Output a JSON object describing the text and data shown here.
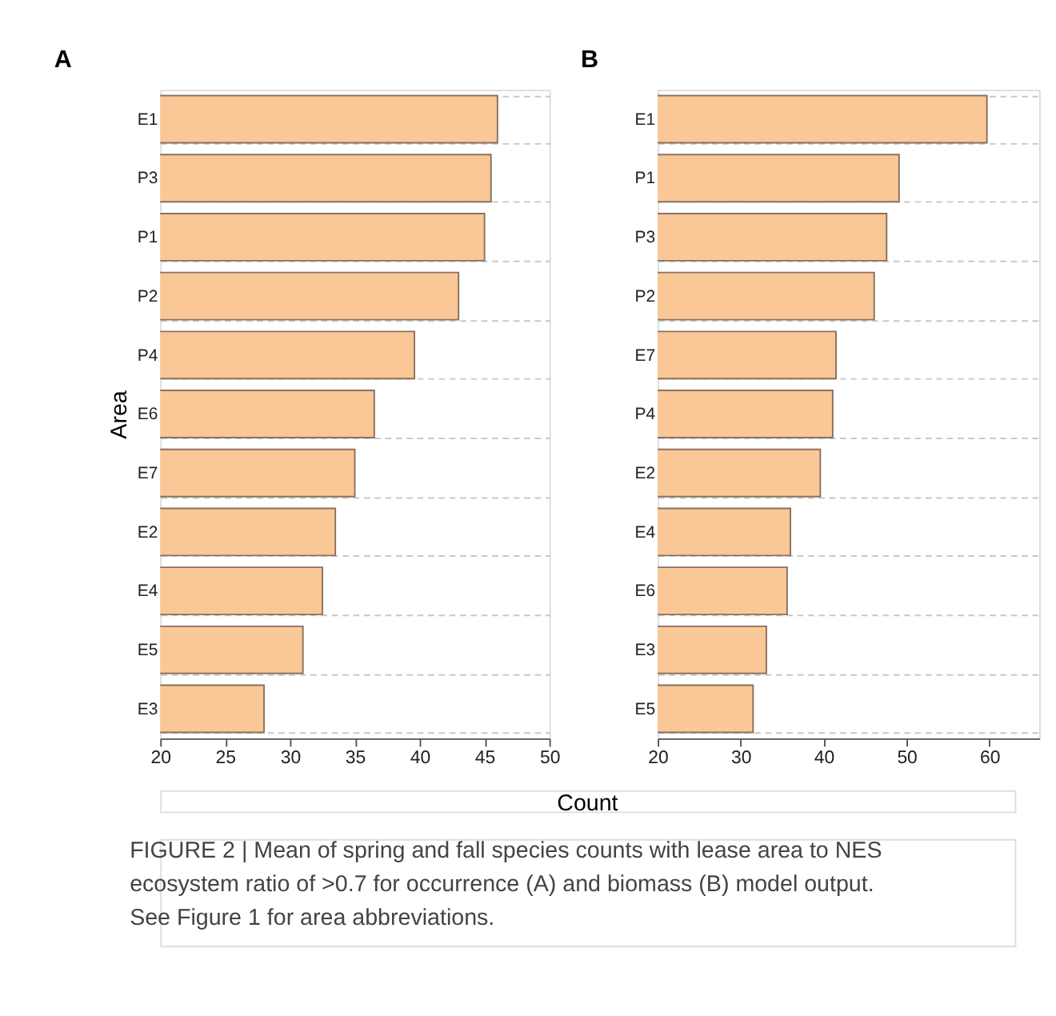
{
  "chart_data": [
    {
      "type": "bar",
      "orientation": "horizontal",
      "title": "A",
      "xlabel": "Count",
      "ylabel": "Area",
      "categories": [
        "E1",
        "P3",
        "P1",
        "P2",
        "P4",
        "E6",
        "E7",
        "E2",
        "E4",
        "E5",
        "E3"
      ],
      "values": [
        46.0,
        45.5,
        45.0,
        43.0,
        39.6,
        36.5,
        35.0,
        33.5,
        32.5,
        31.0,
        28.0
      ],
      "color": "#fac896",
      "xlim": [
        20,
        50
      ],
      "xticks": [
        20,
        25,
        30,
        35,
        40,
        45,
        50
      ],
      "grid": "y",
      "annotations": [
        "FIGURE 2 | Mean of spring and fall species counts with lease area to NES ecosystem ratio of >0.7 for occurrence (A) and biomass (B) model output. See Figure 1 for area abbreviations."
      ]
    },
    {
      "type": "bar",
      "orientation": "horizontal",
      "title": "B",
      "categories": [
        "E1",
        "P1",
        "P3",
        "P2",
        "E7",
        "P4",
        "E2",
        "E4",
        "E6",
        "E3",
        "E5"
      ],
      "values": [
        59.7,
        49.1,
        47.6,
        46.1,
        41.5,
        41.1,
        39.6,
        36.0,
        35.6,
        33.1,
        31.5
      ],
      "color": "#fac896",
      "xlim": [
        20,
        66
      ],
      "xticks": [
        20,
        30,
        40,
        50,
        60
      ],
      "grid": "y"
    }
  ]
}
